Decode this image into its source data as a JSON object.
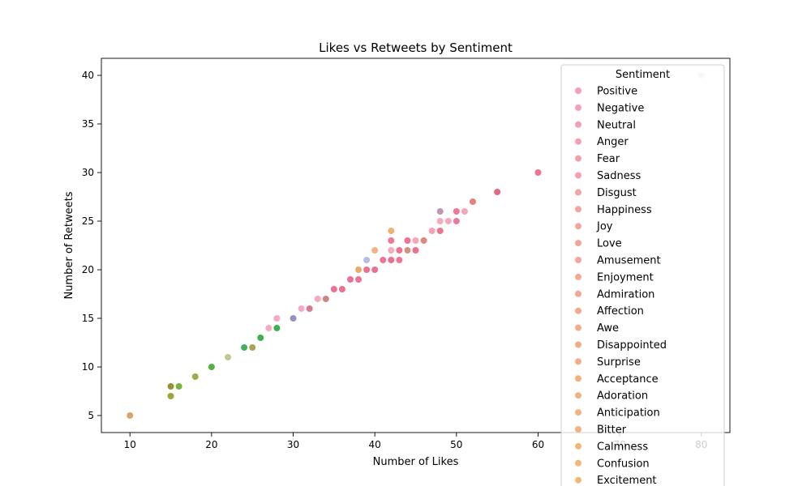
{
  "chart_data": {
    "type": "scatter",
    "title": "Likes vs Retweets by Sentiment",
    "xlabel": "Number of Likes",
    "ylabel": "Number of Retweets",
    "xlim": [
      6.5,
      83.5
    ],
    "ylim": [
      3.25,
      41.75
    ],
    "xticks": [
      10,
      20,
      30,
      40,
      50,
      60,
      70,
      80
    ],
    "yticks": [
      5,
      10,
      15,
      20,
      25,
      30,
      35,
      40
    ],
    "grid": false,
    "legend": {
      "title": "Sentiment",
      "placement": "upper-right",
      "entries": [
        {
          "name": " Positive ",
          "color": "#f2a0b8"
        },
        {
          "name": " Negative ",
          "color": "#f2a0b6"
        },
        {
          "name": " Neutral ",
          "color": "#f2a0b3"
        },
        {
          "name": " Anger ",
          "color": "#f2a1ae"
        },
        {
          "name": " Fear ",
          "color": "#f2a1ab"
        },
        {
          "name": " Sadness ",
          "color": "#f2a2a8"
        },
        {
          "name": " Disgust ",
          "color": "#f2a3a5"
        },
        {
          "name": " Happiness ",
          "color": "#f2a4a2"
        },
        {
          "name": " Joy ",
          "color": "#f2a59e"
        },
        {
          "name": " Love ",
          "color": "#f2a69b"
        },
        {
          "name": " Amusement ",
          "color": "#f2a798"
        },
        {
          "name": " Enjoyment ",
          "color": "#f2a895"
        },
        {
          "name": " Admiration ",
          "color": "#f2a991"
        },
        {
          "name": " Affection ",
          "color": "#f2aa8e"
        },
        {
          "name": " Awe ",
          "color": "#f2ab8b"
        },
        {
          "name": " Disappointed ",
          "color": "#f2ad88"
        },
        {
          "name": " Surprise ",
          "color": "#f2ae85"
        },
        {
          "name": " Acceptance ",
          "color": "#f2b082"
        },
        {
          "name": " Adoration ",
          "color": "#f2b17f"
        },
        {
          "name": " Anticipation ",
          "color": "#f2b37c"
        },
        {
          "name": " Bitter ",
          "color": "#f2b47a"
        },
        {
          "name": " Calmness ",
          "color": "#f1b677"
        },
        {
          "name": " Confusion ",
          "color": "#f0b775"
        },
        {
          "name": " Excitement ",
          "color": "#efb873"
        }
      ]
    },
    "points": [
      {
        "x": 80,
        "y": 40,
        "color": "#f5c6ef"
      },
      {
        "x": 60,
        "y": 30,
        "color": "#ec6b8a"
      },
      {
        "x": 55,
        "y": 28,
        "color": "#e0607e"
      },
      {
        "x": 52,
        "y": 27,
        "color": "#e07a78"
      },
      {
        "x": 48,
        "y": 26,
        "color": "#b792b0"
      },
      {
        "x": 50,
        "y": 26,
        "color": "#ee6f90"
      },
      {
        "x": 51,
        "y": 26,
        "color": "#f3a1b2"
      },
      {
        "x": 48,
        "y": 25,
        "color": "#f3a7b6"
      },
      {
        "x": 49,
        "y": 25,
        "color": "#f3a5b7"
      },
      {
        "x": 50,
        "y": 25,
        "color": "#e67592"
      },
      {
        "x": 42,
        "y": 24,
        "color": "#ecb06a"
      },
      {
        "x": 47,
        "y": 24,
        "color": "#f2a0b0"
      },
      {
        "x": 48,
        "y": 24,
        "color": "#eb6c85"
      },
      {
        "x": 42,
        "y": 23,
        "color": "#f07090"
      },
      {
        "x": 44,
        "y": 23,
        "color": "#ee6a88"
      },
      {
        "x": 45,
        "y": 23,
        "color": "#f3a2b4"
      },
      {
        "x": 46,
        "y": 23,
        "color": "#d88378"
      },
      {
        "x": 40,
        "y": 22,
        "color": "#eeb07a"
      },
      {
        "x": 42,
        "y": 22,
        "color": "#f3a8b8"
      },
      {
        "x": 43,
        "y": 22,
        "color": "#ee6c8c"
      },
      {
        "x": 44,
        "y": 22,
        "color": "#c98f7c"
      },
      {
        "x": 45,
        "y": 22,
        "color": "#ea6a88"
      },
      {
        "x": 39,
        "y": 21,
        "color": "#b3b6ec"
      },
      {
        "x": 41,
        "y": 21,
        "color": "#ed6f8e"
      },
      {
        "x": 42,
        "y": 21,
        "color": "#e66a88"
      },
      {
        "x": 43,
        "y": 21,
        "color": "#f06e90"
      },
      {
        "x": 38,
        "y": 20,
        "color": "#e7a85e"
      },
      {
        "x": 39,
        "y": 20,
        "color": "#ea6a8c"
      },
      {
        "x": 40,
        "y": 20,
        "color": "#e46c8a"
      },
      {
        "x": 37,
        "y": 19,
        "color": "#e56a8e"
      },
      {
        "x": 38,
        "y": 19,
        "color": "#e96b8b"
      },
      {
        "x": 35,
        "y": 18,
        "color": "#ec6a8b"
      },
      {
        "x": 36,
        "y": 18,
        "color": "#e96a8a"
      },
      {
        "x": 33,
        "y": 17,
        "color": "#f3a5bb"
      },
      {
        "x": 34,
        "y": 17,
        "color": "#c98278"
      },
      {
        "x": 31,
        "y": 16,
        "color": "#f4a7c2"
      },
      {
        "x": 32,
        "y": 16,
        "color": "#d2758c"
      },
      {
        "x": 28,
        "y": 15,
        "color": "#f3a6bb"
      },
      {
        "x": 30,
        "y": 15,
        "color": "#9688bd"
      },
      {
        "x": 27,
        "y": 14,
        "color": "#f3a6bb"
      },
      {
        "x": 28,
        "y": 14,
        "color": "#36ad4a"
      },
      {
        "x": 26,
        "y": 13,
        "color": "#3aa944"
      },
      {
        "x": 24,
        "y": 12,
        "color": "#3bab58"
      },
      {
        "x": 25,
        "y": 12,
        "color": "#a49d4e"
      },
      {
        "x": 22,
        "y": 11,
        "color": "#bfc48d"
      },
      {
        "x": 20,
        "y": 10,
        "color": "#4aad3a"
      },
      {
        "x": 18,
        "y": 9,
        "color": "#9da83c"
      },
      {
        "x": 15,
        "y": 8,
        "color": "#8f8e2a"
      },
      {
        "x": 16,
        "y": 8,
        "color": "#6fb03a"
      },
      {
        "x": 15,
        "y": 7,
        "color": "#98a02c"
      },
      {
        "x": 10,
        "y": 5,
        "color": "#d9a060"
      }
    ]
  }
}
